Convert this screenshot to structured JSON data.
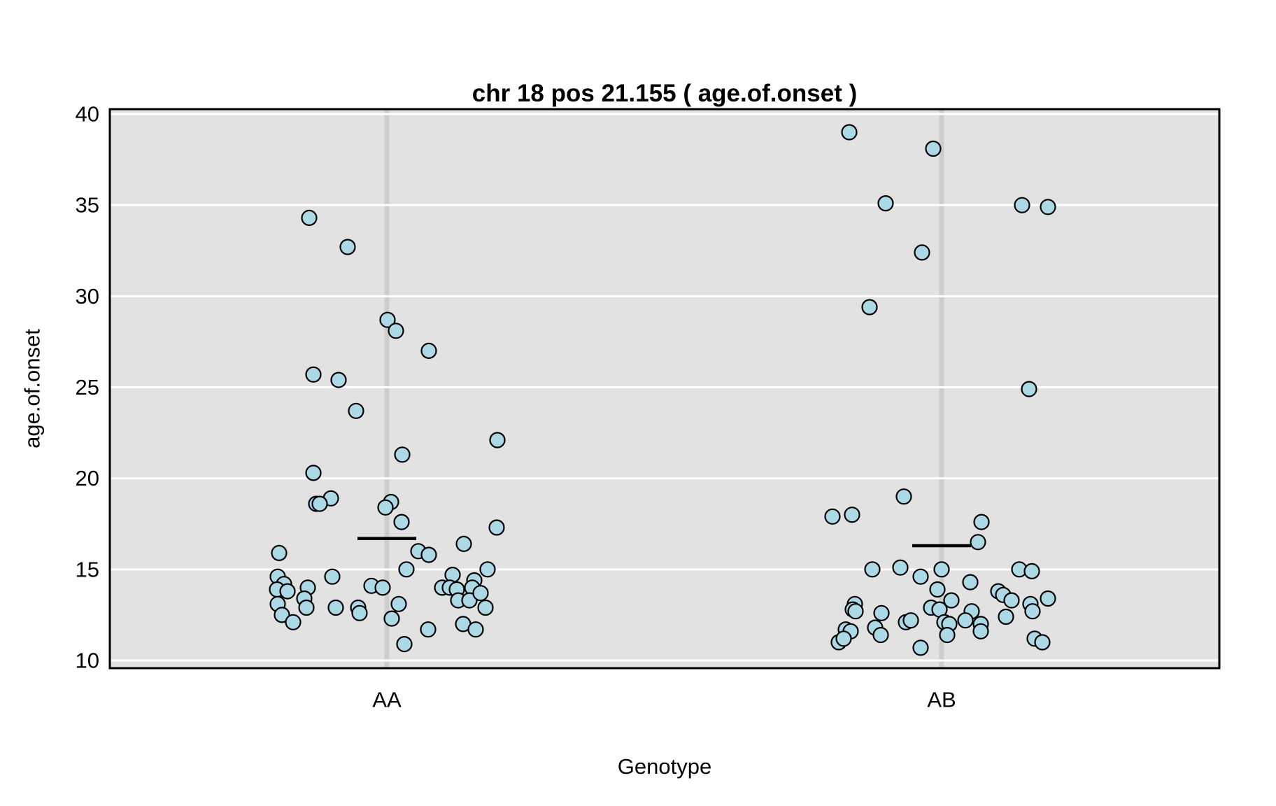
{
  "figure": {
    "kind": "R strip plot (jittered one-way scatter) on gray panel"
  },
  "colors": {
    "page_background": "#FFFFFF",
    "panel_background": "#E2E2E2",
    "grid_line": "#FFFFFF",
    "category_stripe": "#CDCDCD",
    "point_fill": "#ADD8E6",
    "point_stroke": "#000000",
    "mean_line": "#000000",
    "panel_border": "#000000",
    "text": "#000000"
  },
  "chart_data": {
    "type": "scatter",
    "variant": "jittered strip plot by category with group mean bars",
    "title": "chr 18 pos 21.155 ( age.of.onset )",
    "xlabel": "Genotype",
    "ylabel": "age.of.onset",
    "ylim": [
      10,
      40
    ],
    "yticks": [
      10,
      15,
      20,
      25,
      30,
      35,
      40
    ],
    "grid": "horizontal white gridlines on gray panel; vertical gray reference stripe at each category",
    "legend": "none",
    "categories": [
      "AA",
      "AB"
    ],
    "group_means": {
      "AA": 16.7,
      "AB": 16.3
    },
    "point_format": "[jitter_dx_px_from_category_center, age_of_onset_value]",
    "series": [
      {
        "name": "AA",
        "n": 56,
        "points": [
          [
            -111,
            34.3
          ],
          [
            -56,
            32.7
          ],
          [
            1,
            28.7
          ],
          [
            13,
            28.1
          ],
          [
            60,
            27.0
          ],
          [
            -105,
            25.7
          ],
          [
            -69,
            25.4
          ],
          [
            -44,
            23.7
          ],
          [
            158,
            22.1
          ],
          [
            22,
            21.3
          ],
          [
            -105,
            20.3
          ],
          [
            -80,
            18.9
          ],
          [
            -101,
            18.6
          ],
          [
            -96,
            18.6
          ],
          [
            6,
            18.7
          ],
          [
            -2,
            18.4
          ],
          [
            21,
            17.6
          ],
          [
            157,
            17.3
          ],
          [
            110,
            16.4
          ],
          [
            45,
            16.0
          ],
          [
            60,
            15.8
          ],
          [
            -154,
            15.9
          ],
          [
            28,
            15.0
          ],
          [
            144,
            15.0
          ],
          [
            -156,
            14.6
          ],
          [
            -147,
            14.2
          ],
          [
            -157,
            13.9
          ],
          [
            -142,
            13.8
          ],
          [
            -156,
            13.1
          ],
          [
            -150,
            12.5
          ],
          [
            -134,
            12.1
          ],
          [
            -113,
            14.0
          ],
          [
            -118,
            13.4
          ],
          [
            -115,
            12.9
          ],
          [
            -78,
            14.6
          ],
          [
            -73,
            12.9
          ],
          [
            -41,
            12.9
          ],
          [
            -39,
            12.6
          ],
          [
            -22,
            14.1
          ],
          [
            -6,
            14.0
          ],
          [
            7,
            12.3
          ],
          [
            17,
            13.1
          ],
          [
            25,
            10.9
          ],
          [
            59,
            11.7
          ],
          [
            94,
            14.7
          ],
          [
            79,
            14.0
          ],
          [
            90,
            14.0
          ],
          [
            100,
            13.9
          ],
          [
            125,
            14.4
          ],
          [
            122,
            14.0
          ],
          [
            102,
            13.3
          ],
          [
            118,
            13.3
          ],
          [
            134,
            13.7
          ],
          [
            141,
            12.9
          ],
          [
            109,
            12.0
          ],
          [
            127,
            11.7
          ]
        ]
      },
      {
        "name": "AB",
        "n": 53,
        "points": [
          [
            -132,
            39.0
          ],
          [
            -12,
            38.1
          ],
          [
            -80,
            35.1
          ],
          [
            115,
            35.0
          ],
          [
            152,
            34.9
          ],
          [
            -28,
            32.4
          ],
          [
            -103,
            29.4
          ],
          [
            125,
            24.9
          ],
          [
            -54,
            19.0
          ],
          [
            -128,
            18.0
          ],
          [
            -156,
            17.9
          ],
          [
            57,
            17.6
          ],
          [
            52,
            16.5
          ],
          [
            -99,
            15.0
          ],
          [
            -59,
            15.1
          ],
          [
            0,
            15.0
          ],
          [
            -30,
            14.6
          ],
          [
            -6,
            13.9
          ],
          [
            -124,
            13.1
          ],
          [
            -127,
            12.8
          ],
          [
            -123,
            12.7
          ],
          [
            -86,
            12.6
          ],
          [
            -95,
            11.8
          ],
          [
            -87,
            11.4
          ],
          [
            -137,
            11.7
          ],
          [
            -130,
            11.6
          ],
          [
            -147,
            11.0
          ],
          [
            -140,
            11.2
          ],
          [
            -51,
            12.1
          ],
          [
            -44,
            12.2
          ],
          [
            -15,
            12.9
          ],
          [
            -3,
            12.8
          ],
          [
            14,
            13.3
          ],
          [
            4,
            12.1
          ],
          [
            11,
            12.0
          ],
          [
            8,
            11.4
          ],
          [
            -30,
            10.7
          ],
          [
            111,
            15.0
          ],
          [
            129,
            14.9
          ],
          [
            41,
            14.3
          ],
          [
            81,
            13.8
          ],
          [
            88,
            13.6
          ],
          [
            100,
            13.3
          ],
          [
            127,
            13.1
          ],
          [
            130,
            12.7
          ],
          [
            152,
            13.4
          ],
          [
            43,
            12.7
          ],
          [
            34,
            12.2
          ],
          [
            56,
            12.0
          ],
          [
            56,
            11.6
          ],
          [
            92,
            12.4
          ],
          [
            133,
            11.2
          ],
          [
            144,
            11.0
          ]
        ]
      }
    ]
  }
}
